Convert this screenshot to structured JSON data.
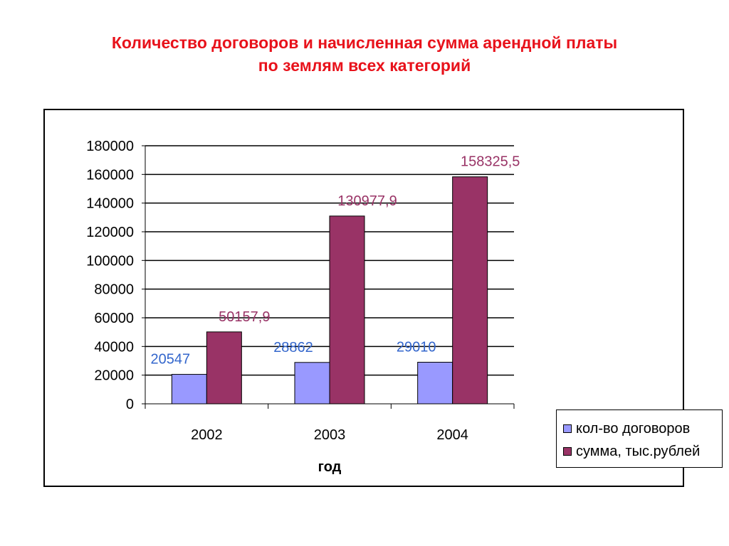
{
  "title_lines": [
    "Количество договоров и начисленная сумма арендной платы",
    "по землям всех категорий"
  ],
  "colors": {
    "title": "#e8121b",
    "series1": "#9999ff",
    "series2": "#993366",
    "label1": "#3366cc",
    "label2": "#993366"
  },
  "chart_data": {
    "type": "bar",
    "title": "Количество договоров и начисленная сумма арендной платы по землям всех категорий",
    "xlabel": "год",
    "ylabel": "",
    "categories": [
      "2002",
      "2003",
      "2004"
    ],
    "series": [
      {
        "name": "кол-во договоров",
        "values": [
          20547,
          28862,
          29010
        ],
        "labels": [
          "20547",
          "28862",
          "29010"
        ]
      },
      {
        "name": "сумма, тыс.рублей",
        "values": [
          50157.9,
          130977.9,
          158325.5
        ],
        "labels": [
          "50157,9",
          "130977,9",
          "158325,5"
        ]
      }
    ],
    "ylim": [
      0,
      180000
    ],
    "yticks": [
      "0",
      "20000",
      "40000",
      "60000",
      "80000",
      "100000",
      "120000",
      "140000",
      "160000",
      "180000"
    ],
    "grid": true,
    "legend": "right"
  }
}
